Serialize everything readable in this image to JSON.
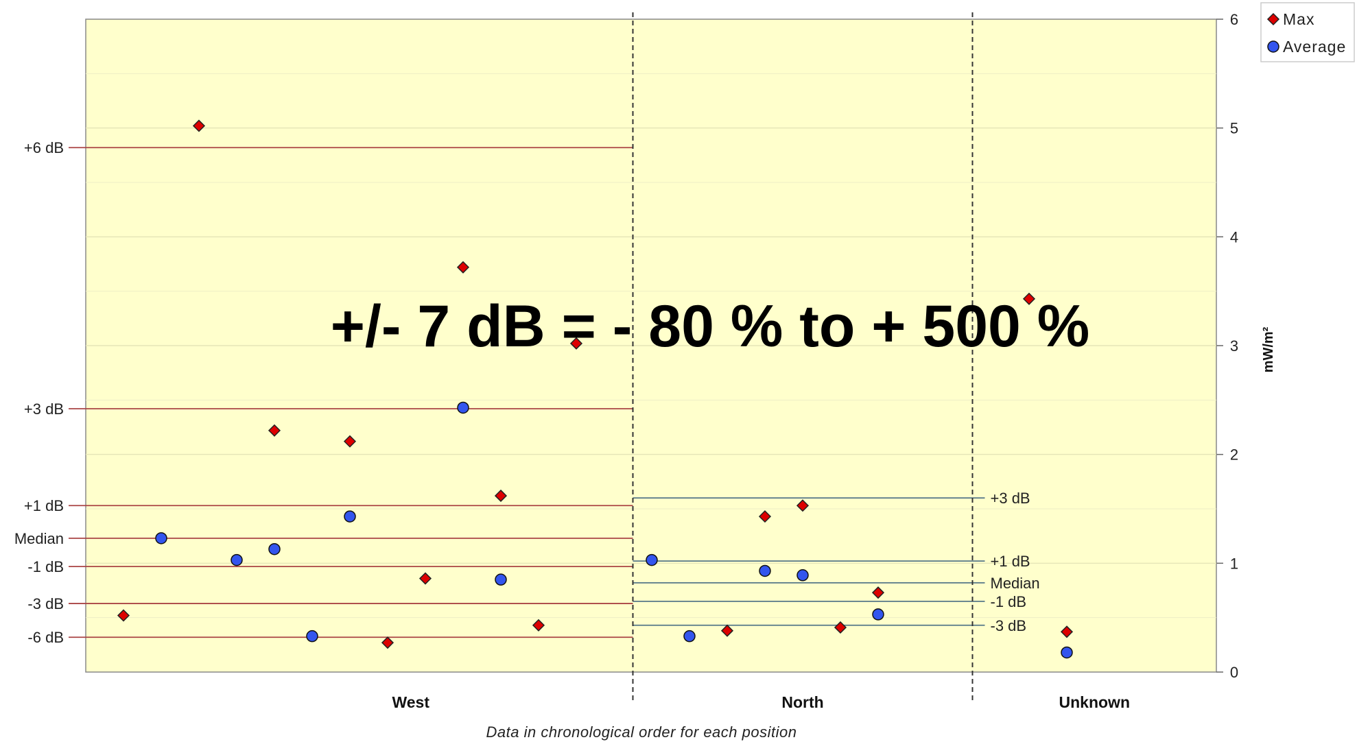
{
  "chart_data": {
    "type": "scatter",
    "xlabel": "Data in chronological order for each position",
    "ylabel": "mW/m²",
    "ylim": [
      0,
      6
    ],
    "y_ticks": [
      "0",
      "1",
      "2",
      "3",
      "4",
      "5",
      "6"
    ],
    "grid": true,
    "background_color": "#FFFFCC",
    "legend_position": "top-right",
    "categories": [
      {
        "name": "West",
        "count": 14
      },
      {
        "name": "North",
        "count": 9
      },
      {
        "name": "Unknown",
        "count": 3
      }
    ],
    "series": [
      {
        "name": "Max",
        "marker": "diamond",
        "color": "#DD0000",
        "points": [
          {
            "x": 1,
            "y": 0.52
          },
          {
            "x": 3,
            "y": 5.02
          },
          {
            "x": 5,
            "y": 2.22
          },
          {
            "x": 7,
            "y": 2.12
          },
          {
            "x": 8,
            "y": 0.27
          },
          {
            "x": 9,
            "y": 0.86
          },
          {
            "x": 10,
            "y": 3.72
          },
          {
            "x": 11,
            "y": 1.62
          },
          {
            "x": 12,
            "y": 0.43
          },
          {
            "x": 13,
            "y": 3.02
          },
          {
            "x": 17,
            "y": 0.38
          },
          {
            "x": 18,
            "y": 1.43
          },
          {
            "x": 19,
            "y": 1.53
          },
          {
            "x": 20,
            "y": 0.41
          },
          {
            "x": 21,
            "y": 0.73
          },
          {
            "x": 25,
            "y": 3.43
          },
          {
            "x": 26,
            "y": 0.37
          }
        ]
      },
      {
        "name": "Average",
        "marker": "circle",
        "color": "#3355EE",
        "points": [
          {
            "x": 2,
            "y": 1.23
          },
          {
            "x": 4,
            "y": 1.03
          },
          {
            "x": 5,
            "y": 1.13
          },
          {
            "x": 6,
            "y": 0.33
          },
          {
            "x": 7,
            "y": 1.43
          },
          {
            "x": 10,
            "y": 2.43
          },
          {
            "x": 11,
            "y": 0.85
          },
          {
            "x": 15,
            "y": 1.03
          },
          {
            "x": 16,
            "y": 0.33
          },
          {
            "x": 18,
            "y": 0.93
          },
          {
            "x": 19,
            "y": 0.89
          },
          {
            "x": 21,
            "y": 0.53
          },
          {
            "x": 26,
            "y": 0.18
          }
        ]
      }
    ],
    "reference_lines": [
      {
        "group": "West",
        "color": "#AA4444",
        "lines": [
          {
            "label": "+6 dB",
            "y": 4.82
          },
          {
            "label": "+3 dB",
            "y": 2.42
          },
          {
            "label": "+1 dB",
            "y": 1.53
          },
          {
            "label": "Median",
            "y": 1.23
          },
          {
            "label": "-1 dB",
            "y": 0.97
          },
          {
            "label": "-3 dB",
            "y": 0.63
          },
          {
            "label": "-6 dB",
            "y": 0.32
          }
        ]
      },
      {
        "group": "North",
        "color": "#557788",
        "lines": [
          {
            "label": "+3 dB",
            "y": 1.6
          },
          {
            "label": "+1 dB",
            "y": 1.02
          },
          {
            "label": "Median",
            "y": 0.82
          },
          {
            "label": "-1 dB",
            "y": 0.65
          },
          {
            "label": "-3 dB",
            "y": 0.43
          }
        ]
      }
    ],
    "annotation": "+/- 7 dB = - 80 % to + 500 %"
  }
}
